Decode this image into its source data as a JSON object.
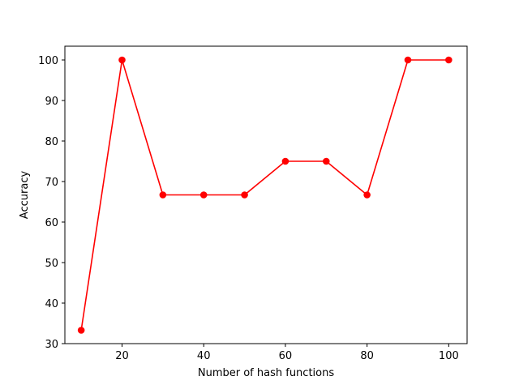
{
  "chart_data": {
    "type": "line",
    "title": "",
    "xlabel": "Number of hash functions",
    "ylabel": "Accuracy",
    "xlim": [
      6,
      104.5
    ],
    "ylim": [
      30,
      103.4
    ],
    "xticks": [
      20,
      40,
      60,
      80,
      100
    ],
    "yticks": [
      30,
      40,
      50,
      60,
      70,
      80,
      90,
      100
    ],
    "grid": false,
    "series": [
      {
        "name": "",
        "color": "#ff0000",
        "marker": "circle",
        "x": [
          10,
          20,
          30,
          40,
          50,
          60,
          70,
          80,
          90,
          100
        ],
        "y": [
          33.3,
          100,
          66.7,
          66.7,
          66.7,
          75,
          75,
          66.7,
          100,
          100
        ]
      }
    ]
  }
}
